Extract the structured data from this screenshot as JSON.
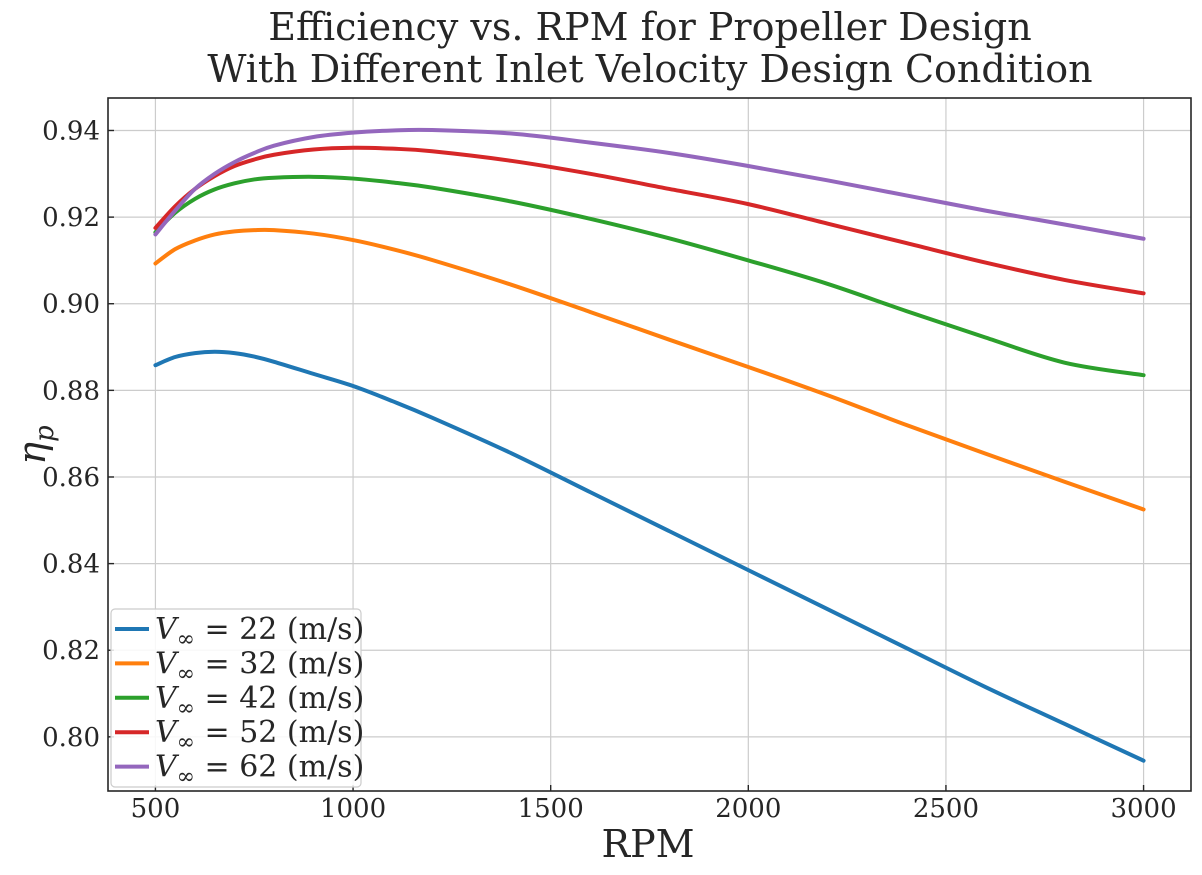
{
  "chart_data": {
    "type": "line",
    "title": "Efficiency vs. RPM for Propeller Design",
    "subtitle": "With Different Inlet Velocity Design Condition",
    "xlabel": "RPM",
    "ylabel": "η",
    "ylabel_subscript": "p",
    "xlim": [
      380,
      3120
    ],
    "ylim": [
      0.7875,
      0.9475
    ],
    "xticks": [
      500,
      1000,
      1500,
      2000,
      2500,
      3000
    ],
    "xtick_labels": [
      "500",
      "1000",
      "1500",
      "2000",
      "2500",
      "3000"
    ],
    "yticks": [
      0.8,
      0.82,
      0.84,
      0.86,
      0.88,
      0.9,
      0.92,
      0.94
    ],
    "ytick_labels": [
      "0.80",
      "0.82",
      "0.84",
      "0.86",
      "0.88",
      "0.90",
      "0.92",
      "0.94"
    ],
    "grid": true,
    "legend_position": "bottom-left",
    "x": [
      500,
      550,
      600,
      650,
      700,
      750,
      800,
      900,
      1000,
      1100,
      1200,
      1400,
      1600,
      1800,
      2000,
      2200,
      2400,
      2600,
      2800,
      3000
    ],
    "series": [
      {
        "name": "V∞ = 22 (m/s)",
        "legend_symbol": "V",
        "legend_subscript": "∞",
        "legend_suffix": " = 22 (m/s)",
        "color": "#1f77b4",
        "values": [
          0.8858,
          0.8877,
          0.8886,
          0.8889,
          0.8886,
          0.8878,
          0.8866,
          0.8838,
          0.881,
          0.8775,
          0.8737,
          0.8655,
          0.8565,
          0.8475,
          0.8385,
          0.8295,
          0.8205,
          0.8115,
          0.803,
          0.7945
        ]
      },
      {
        "name": "V∞ = 32 (m/s)",
        "legend_symbol": "V",
        "legend_subscript": "∞",
        "legend_suffix": " = 32 (m/s)",
        "color": "#ff7f0e",
        "values": [
          0.9093,
          0.9126,
          0.9146,
          0.916,
          0.9167,
          0.917,
          0.917,
          0.9162,
          0.9147,
          0.9126,
          0.9101,
          0.9044,
          0.8981,
          0.8917,
          0.8854,
          0.8789,
          0.872,
          0.8654,
          0.8589,
          0.8525
        ]
      },
      {
        "name": "V∞ = 42 (m/s)",
        "legend_symbol": "V",
        "legend_subscript": "∞",
        "legend_suffix": " = 42 (m/s)",
        "color": "#2ca02c",
        "values": [
          0.9165,
          0.921,
          0.9242,
          0.9264,
          0.9278,
          0.9287,
          0.9291,
          0.9293,
          0.9289,
          0.928,
          0.9268,
          0.9236,
          0.9196,
          0.9151,
          0.91,
          0.9046,
          0.8983,
          0.8922,
          0.8864,
          0.8835
        ]
      },
      {
        "name": "V∞ = 52 (m/s)",
        "legend_symbol": "V",
        "legend_subscript": "∞",
        "legend_suffix": " = 52 (m/s)",
        "color": "#d62728",
        "values": [
          0.9175,
          0.9225,
          0.9265,
          0.9295,
          0.9318,
          0.9333,
          0.9344,
          0.9356,
          0.936,
          0.9358,
          0.9352,
          0.933,
          0.93,
          0.9265,
          0.923,
          0.9185,
          0.914,
          0.9095,
          0.9055,
          0.9024
        ]
      },
      {
        "name": "V∞ = 62 (m/s)",
        "legend_symbol": "V",
        "legend_subscript": "∞",
        "legend_suffix": " = 62 (m/s)",
        "color": "#9467bd",
        "values": [
          0.916,
          0.9215,
          0.9265,
          0.93,
          0.9327,
          0.9348,
          0.9365,
          0.9385,
          0.9395,
          0.94,
          0.9401,
          0.9393,
          0.9372,
          0.9348,
          0.9318,
          0.9285,
          0.925,
          0.9215,
          0.9183,
          0.915
        ]
      }
    ]
  }
}
